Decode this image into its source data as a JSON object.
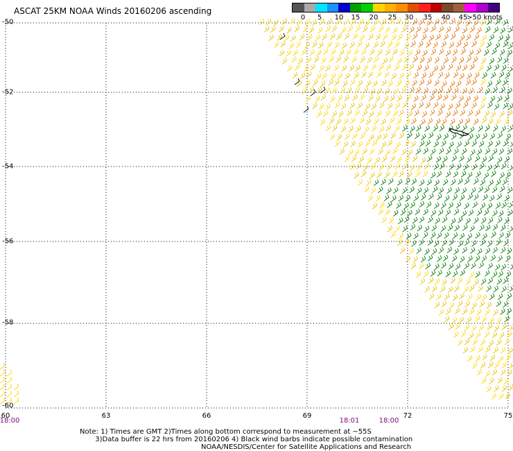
{
  "title": "ASCAT 25KM NOAA Winds 20160206 ascending",
  "legend": {
    "labels": [
      "0",
      "5",
      "10",
      "15",
      "20",
      "25",
      "30",
      "35",
      "40",
      "45",
      ">50 knots"
    ],
    "colors": [
      "#555555",
      "#aaaaaa",
      "#00e5ff",
      "#1e90ff",
      "#0000cd",
      "#00a000",
      "#00d000",
      "#ffd400",
      "#ffb000",
      "#ff8c00",
      "#e05000",
      "#ff2020",
      "#c00000",
      "#7a4a2a",
      "#a06040",
      "#ff00ff",
      "#b000d0",
      "#400080"
    ]
  },
  "axes": {
    "lat_labels": [
      "-50",
      "-52",
      "-54",
      "-56",
      "-58",
      "-60"
    ],
    "lon_labels": [
      "60",
      "63",
      "66",
      "69",
      "72",
      "75"
    ]
  },
  "time_labels": [
    "18:00",
    "18:01",
    "18:00"
  ],
  "notes": {
    "line1": "Note: 1) Times are GMT 2)Times along bottom correspond to measurement at ~55S",
    "line2": "       3)Data buffer is 22 hrs from 20160206 4) Black wind barbs indicate possible contamination",
    "credit": "NOAA/NESDIS/Center for Satellite Applications and Research"
  },
  "colors": {
    "wind_yellow": "#ffd400",
    "wind_gold": "#e8c000",
    "wind_orange": "#e07000",
    "wind_green": "#007a00",
    "wind_black": "#000000",
    "time_label": "#7a0a7a"
  }
}
